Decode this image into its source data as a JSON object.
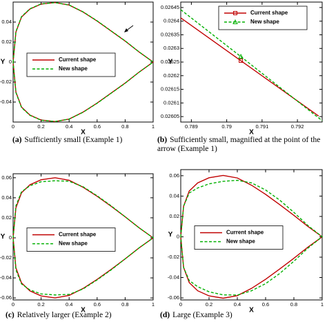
{
  "chart_data": [
    {
      "type": "line",
      "caption_label": "(a)",
      "caption": "Sufficiently small (Example 1)",
      "x_label": "X",
      "y_label": "Y",
      "xlim": [
        0,
        1
      ],
      "ylim": [
        -0.06,
        0.06
      ],
      "xticks": [
        0,
        0.2,
        0.4,
        0.6,
        0.8,
        1
      ],
      "yticks": [
        -0.04,
        -0.02,
        0,
        0.02,
        0.04
      ],
      "legend": "center-left",
      "series": [
        {
          "name": "Current shape",
          "color": "#c00000",
          "dash": "solid",
          "x": [
            0,
            0.02,
            0.06,
            0.12,
            0.2,
            0.3,
            0.4,
            0.5,
            0.6,
            0.7,
            0.8,
            0.9,
            1,
            0.9,
            0.8,
            0.7,
            0.6,
            0.5,
            0.4,
            0.3,
            0.2,
            0.12,
            0.06,
            0.02,
            0
          ],
          "values": [
            0,
            0.03,
            0.045,
            0.053,
            0.058,
            0.0595,
            0.057,
            0.05,
            0.041,
            0.031,
            0.021,
            0.01,
            0,
            -0.01,
            -0.021,
            -0.031,
            -0.041,
            -0.05,
            -0.057,
            -0.0595,
            -0.058,
            -0.053,
            -0.045,
            -0.03,
            0
          ]
        },
        {
          "name": "New shape",
          "color": "#00b000",
          "dash": "dashed",
          "x": [
            0,
            0.02,
            0.06,
            0.12,
            0.2,
            0.3,
            0.4,
            0.5,
            0.6,
            0.7,
            0.8,
            0.9,
            1,
            0.9,
            0.8,
            0.7,
            0.6,
            0.5,
            0.4,
            0.3,
            0.2,
            0.12,
            0.06,
            0.02,
            0
          ],
          "values": [
            0,
            0.0305,
            0.0455,
            0.0533,
            0.0582,
            0.0594,
            0.0571,
            0.0502,
            0.0412,
            0.0312,
            0.0212,
            0.0101,
            0,
            -0.0101,
            -0.0212,
            -0.0312,
            -0.0412,
            -0.0502,
            -0.0571,
            -0.0594,
            -0.0582,
            -0.0533,
            -0.0455,
            -0.0305,
            0
          ]
        }
      ]
    },
    {
      "type": "line",
      "caption_label": "(b)",
      "caption": "Sufficiently small, magnified at the point of the arrow (Example 1)",
      "x_label": "X",
      "y_label": "Y",
      "xlim": [
        0.7887,
        0.7927
      ],
      "ylim": [
        0.02603,
        0.02647
      ],
      "xticks": [
        0.789,
        0.79,
        0.791,
        0.792
      ],
      "yticks": [
        0.02605,
        0.0261,
        0.02615,
        0.0262,
        0.02625,
        0.0263,
        0.02635,
        0.0264,
        0.02645
      ],
      "legend": "upper-right",
      "series": [
        {
          "name": "Current shape",
          "color": "#c00000",
          "dash": "solid",
          "marker": "square",
          "x": [
            0.7887,
            0.7904,
            0.7926
          ],
          "values": [
            0.026412,
            0.026255,
            0.026052
          ]
        },
        {
          "name": "New shape",
          "color": "#00b000",
          "dash": "dashed",
          "marker": "triangle",
          "x": [
            0.7887,
            0.7904,
            0.7927
          ],
          "values": [
            0.026442,
            0.02627,
            0.026035
          ]
        }
      ]
    },
    {
      "type": "line",
      "caption_label": "(c)",
      "caption": "Relatively larger (Example 2)",
      "x_label": "X",
      "y_label": "Y",
      "xlim": [
        0,
        1
      ],
      "ylim": [
        -0.062,
        0.064
      ],
      "xticks": [
        0,
        0.2,
        0.4,
        0.6,
        0.8,
        1
      ],
      "yticks": [
        -0.06,
        -0.04,
        -0.02,
        0,
        0.02,
        0.04,
        0.06
      ],
      "legend": "center-left",
      "series": [
        {
          "name": "Current shape",
          "color": "#c00000",
          "dash": "solid",
          "x": [
            0,
            0.02,
            0.06,
            0.12,
            0.2,
            0.3,
            0.4,
            0.5,
            0.6,
            0.7,
            0.8,
            0.9,
            1,
            0.9,
            0.8,
            0.7,
            0.6,
            0.5,
            0.4,
            0.3,
            0.2,
            0.12,
            0.06,
            0.02,
            0
          ],
          "values": [
            0,
            0.03,
            0.045,
            0.053,
            0.058,
            0.06,
            0.0575,
            0.0505,
            0.0415,
            0.0315,
            0.021,
            0.01,
            0,
            -0.01,
            -0.021,
            -0.0315,
            -0.0415,
            -0.0505,
            -0.0575,
            -0.06,
            -0.058,
            -0.053,
            -0.045,
            -0.03,
            0
          ]
        },
        {
          "name": "New shape",
          "color": "#00b000",
          "dash": "dashed",
          "x": [
            0,
            0.02,
            0.06,
            0.12,
            0.2,
            0.3,
            0.4,
            0.5,
            0.6,
            0.7,
            0.8,
            0.9,
            1,
            0.9,
            0.8,
            0.7,
            0.6,
            0.5,
            0.4,
            0.3,
            0.2,
            0.12,
            0.06,
            0.02,
            0
          ],
          "values": [
            0,
            0.032,
            0.046,
            0.052,
            0.056,
            0.057,
            0.0565,
            0.051,
            0.042,
            0.032,
            0.021,
            0.01,
            0,
            -0.01,
            -0.021,
            -0.032,
            -0.042,
            -0.051,
            -0.0565,
            -0.057,
            -0.056,
            -0.052,
            -0.046,
            -0.032,
            0
          ]
        }
      ]
    },
    {
      "type": "line",
      "caption_label": "(d)",
      "caption": "Large (Example 3)",
      "x_label": "X",
      "y_label": "Y",
      "xlim": [
        0,
        1
      ],
      "ylim": [
        -0.062,
        0.066
      ],
      "xticks": [
        0,
        0.2,
        0.4,
        0.6,
        0.8,
        1
      ],
      "yticks": [
        -0.06,
        -0.04,
        -0.02,
        0,
        0.02,
        0.04,
        0.06
      ],
      "legend": "center-left",
      "series": [
        {
          "name": "Current shape",
          "color": "#c00000",
          "dash": "solid",
          "x": [
            0,
            0.02,
            0.06,
            0.12,
            0.2,
            0.3,
            0.4,
            0.5,
            0.6,
            0.7,
            0.8,
            0.9,
            1,
            0.9,
            0.8,
            0.7,
            0.6,
            0.5,
            0.4,
            0.3,
            0.2,
            0.12,
            0.06,
            0.02,
            0
          ],
          "values": [
            0,
            0.03,
            0.045,
            0.053,
            0.058,
            0.0603,
            0.0578,
            0.0507,
            0.0417,
            0.0316,
            0.0211,
            0.0101,
            0,
            -0.0101,
            -0.0211,
            -0.0316,
            -0.0417,
            -0.0507,
            -0.0578,
            -0.0603,
            -0.058,
            -0.053,
            -0.045,
            -0.03,
            0
          ]
        },
        {
          "name": "New shape",
          "color": "#00b000",
          "dash": "dashed",
          "x": [
            0,
            0.02,
            0.06,
            0.12,
            0.2,
            0.3,
            0.4,
            0.5,
            0.6,
            0.7,
            0.8,
            0.9,
            1,
            0.9,
            0.8,
            0.7,
            0.6,
            0.5,
            0.4,
            0.3,
            0.2,
            0.12,
            0.06,
            0.02,
            0
          ],
          "values": [
            0,
            0.03,
            0.043,
            0.048,
            0.052,
            0.0545,
            0.0555,
            0.053,
            0.046,
            0.036,
            0.024,
            0.011,
            0,
            -0.011,
            -0.024,
            -0.036,
            -0.046,
            -0.053,
            -0.0572,
            -0.057,
            -0.054,
            -0.049,
            -0.043,
            -0.03,
            0
          ]
        }
      ]
    }
  ]
}
